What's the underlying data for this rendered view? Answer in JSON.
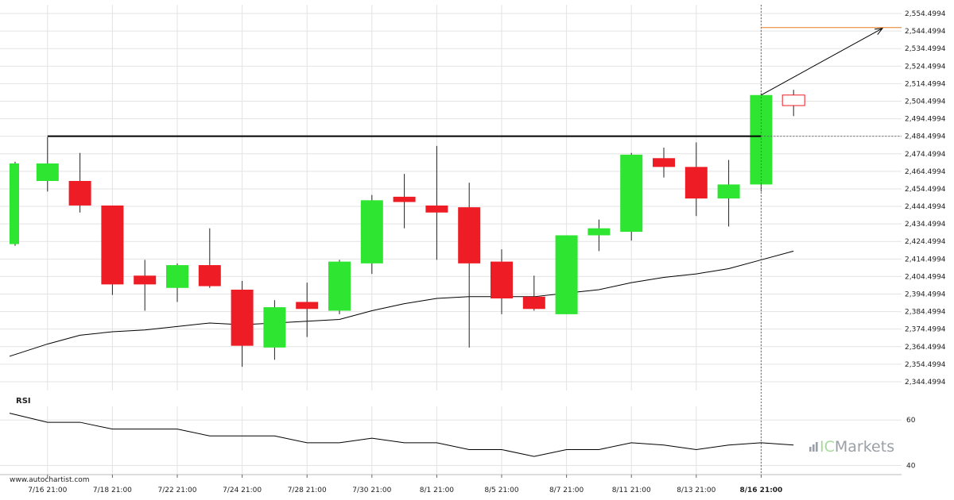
{
  "colors": {
    "up": "#2ee632",
    "down": "#ee1c24",
    "wick": "#222222",
    "grid": "#e3e3e3",
    "ma": "#000000",
    "resistance": "#000000",
    "target": "#e67e22",
    "rsi_line": "#000000",
    "brand_text": "#9aa0a6",
    "brand_ic": "#a9d99e"
  },
  "watermark": "www.autochartist.com",
  "brand": {
    "prefix": "IC",
    "suffix": "Markets",
    "icon": "bars-logo-icon"
  },
  "chart_data": [
    {
      "type": "candlestick",
      "title": "",
      "ylim": [
        2339.4994,
        2559.4994
      ],
      "y_ticks": [
        "2,554.4994",
        "2,544.4994",
        "2,534.4994",
        "2,524.4994",
        "2,514.4994",
        "2,504.4994",
        "2,494.4994",
        "2,484.4994",
        "2,474.4994",
        "2,464.4994",
        "2,454.4994",
        "2,444.4994",
        "2,434.4994",
        "2,424.4994",
        "2,414.4994",
        "2,404.4994",
        "2,394.4994",
        "2,384.4994",
        "2,374.4994",
        "2,364.4994",
        "2,354.4994",
        "2,344.4994"
      ],
      "y_tick_values": [
        2554.4994,
        2544.4994,
        2534.4994,
        2524.4994,
        2514.4994,
        2504.4994,
        2494.4994,
        2484.4994,
        2474.4994,
        2464.4994,
        2454.4994,
        2444.4994,
        2434.4994,
        2424.4994,
        2414.4994,
        2404.4994,
        2394.4994,
        2384.4994,
        2374.4994,
        2364.4994,
        2354.4994,
        2344.4994
      ],
      "x_labels": [
        "7/16 21:00",
        "7/18 21:00",
        "7/22 21:00",
        "7/24 21:00",
        "7/28 21:00",
        "7/30 21:00",
        "8/1 21:00",
        "8/5 21:00",
        "8/7 21:00",
        "8/11 21:00",
        "8/13 21:00",
        "8/16 21:00"
      ],
      "x_label_bar_index": [
        1,
        3,
        5,
        7,
        9,
        11,
        13,
        15,
        17,
        19,
        21,
        23
      ],
      "highlighted_x_label": "8/16 21:00",
      "candles": [
        {
          "o": 2423,
          "h": 2470,
          "l": 2422,
          "c": 2469
        },
        {
          "o": 2459,
          "h": 2484,
          "l": 2453,
          "c": 2469
        },
        {
          "o": 2459,
          "h": 2475,
          "l": 2441,
          "c": 2445
        },
        {
          "o": 2445,
          "h": 2445,
          "l": 2394,
          "c": 2400
        },
        {
          "o": 2405,
          "h": 2414,
          "l": 2385,
          "c": 2400
        },
        {
          "o": 2398,
          "h": 2412,
          "l": 2390,
          "c": 2411
        },
        {
          "o": 2411,
          "h": 2432,
          "l": 2398,
          "c": 2399
        },
        {
          "o": 2397,
          "h": 2402,
          "l": 2353,
          "c": 2365
        },
        {
          "o": 2364,
          "h": 2391,
          "l": 2357,
          "c": 2387
        },
        {
          "o": 2390,
          "h": 2401,
          "l": 2370,
          "c": 2386
        },
        {
          "o": 2385,
          "h": 2414,
          "l": 2383,
          "c": 2413
        },
        {
          "o": 2412,
          "h": 2451,
          "l": 2406,
          "c": 2448
        },
        {
          "o": 2450,
          "h": 2463,
          "l": 2432,
          "c": 2447
        },
        {
          "o": 2445,
          "h": 2479,
          "l": 2414,
          "c": 2441
        },
        {
          "o": 2444,
          "h": 2458,
          "l": 2364,
          "c": 2412
        },
        {
          "o": 2413,
          "h": 2420,
          "l": 2383,
          "c": 2392
        },
        {
          "o": 2393,
          "h": 2405,
          "l": 2385,
          "c": 2386
        },
        {
          "o": 2383,
          "h": 2428,
          "l": 2383,
          "c": 2428
        },
        {
          "o": 2428,
          "h": 2437,
          "l": 2419,
          "c": 2432
        },
        {
          "o": 2430,
          "h": 2475,
          "l": 2425,
          "c": 2474
        },
        {
          "o": 2472,
          "h": 2478,
          "l": 2461,
          "c": 2467
        },
        {
          "o": 2467,
          "h": 2481,
          "l": 2439,
          "c": 2449
        },
        {
          "o": 2449,
          "h": 2471,
          "l": 2433,
          "c": 2457
        },
        {
          "o": 2457,
          "h": 2509,
          "l": 2453,
          "c": 2508
        },
        {
          "o": 2508,
          "h": 2511,
          "l": 2496,
          "c": 2502
        }
      ],
      "moving_average": [
        2359,
        2366,
        2371,
        2373,
        2374,
        2376,
        2378,
        2377,
        2378,
        2379,
        2380,
        2385,
        2389,
        2392,
        2393,
        2393,
        2393,
        2395,
        2397,
        2401,
        2404,
        2406,
        2409,
        2414,
        2419
      ],
      "resistance_level": 2484.4994,
      "resistance_start_bar": 1,
      "resistance_end_bar": 23,
      "target_level": 2546.4994,
      "forecast_arrow": {
        "from_bar": 23,
        "from_value": 2508,
        "to_value": 2546.4994
      },
      "vertical_marker_bar": 23
    },
    {
      "type": "line",
      "title": "RSI",
      "ylim": [
        36,
        66
      ],
      "y_ticks": [
        "60",
        "40"
      ],
      "y_tick_values": [
        60,
        40
      ],
      "values": [
        63,
        59,
        59,
        56,
        56,
        56,
        53,
        53,
        53,
        50,
        50,
        52,
        50,
        50,
        47,
        47,
        44,
        47,
        47,
        50,
        49,
        47,
        49,
        50,
        49
      ]
    }
  ]
}
